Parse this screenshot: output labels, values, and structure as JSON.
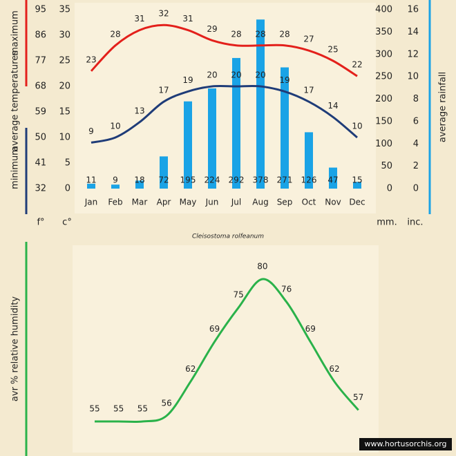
{
  "caption": "Cleisostoma rolfeanum",
  "watermark": "www.hortusorchis.org",
  "chart_data": [
    {
      "type": "climate",
      "ylabel": "average temperatures",
      "categories": [
        "Jan",
        "Feb",
        "Mar",
        "Apr",
        "May",
        "Jun",
        "Jul",
        "Aug",
        "Sep",
        "Oct",
        "Nov",
        "Dec"
      ],
      "series": [
        {
          "name": "maximum",
          "color": "#e3201b",
          "kind": "line",
          "axis": "y",
          "values": [
            23,
            28,
            31,
            32,
            31,
            29,
            28,
            28,
            28,
            27,
            25,
            22
          ]
        },
        {
          "name": "minimum",
          "color": "#1f3c78",
          "kind": "line",
          "axis": "y",
          "values": [
            9,
            10,
            13,
            17,
            19,
            20,
            20,
            20,
            19,
            17,
            14,
            10
          ]
        },
        {
          "name": "average rainfall",
          "color": "#1aa3e6",
          "kind": "bar",
          "axis": "y2",
          "values": [
            11,
            9,
            18,
            72,
            195,
            224,
            292,
            378,
            271,
            126,
            47,
            15
          ]
        }
      ],
      "ylim": [
        0,
        35
      ],
      "yticks": [
        0,
        5,
        10,
        15,
        20,
        25,
        30,
        35
      ],
      "y_unit": "c°",
      "flim": [
        32,
        95
      ],
      "fticks": [
        32,
        41,
        50,
        59,
        68,
        77,
        86,
        95
      ],
      "f_unit": "f°",
      "y2lim": [
        0,
        400
      ],
      "y2ticks": [
        0,
        50,
        100,
        150,
        200,
        250,
        300,
        350,
        400
      ],
      "y2_unit": "mm.",
      "y3lim": [
        0,
        16
      ],
      "y3ticks": [
        0,
        2,
        4,
        6,
        8,
        10,
        12,
        14,
        16
      ],
      "y3_unit": "inc."
    },
    {
      "type": "line",
      "ylabel": "avr % relative humidity",
      "color": "#2ab24a",
      "values": [
        55,
        55,
        55,
        56,
        62,
        69,
        75,
        80,
        76,
        69,
        62,
        57
      ]
    }
  ]
}
